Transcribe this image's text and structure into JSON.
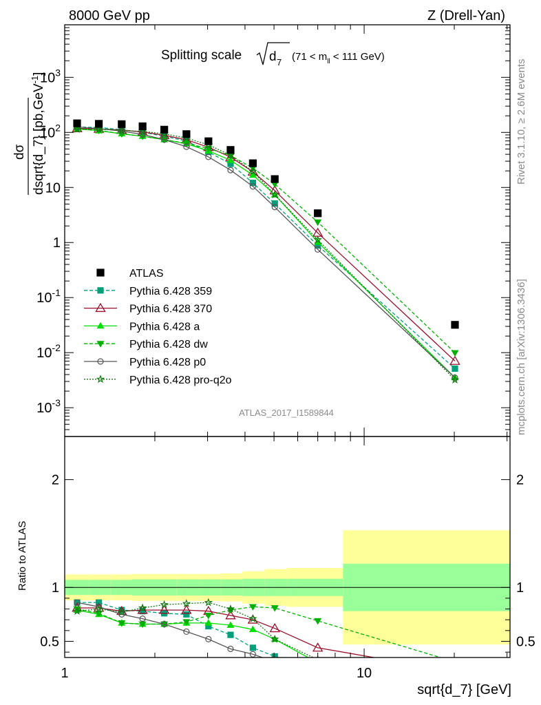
{
  "header": {
    "left": "8000 GeV pp",
    "right": "Z (Drell-Yan)"
  },
  "side_labels": {
    "rivet": "Rivet 3.1.10, ≥ 2.6M events",
    "mcplots": "mcplots.cern.ch [arXiv:1306.3436]"
  },
  "chart_data": {
    "type": "line",
    "title": "Splitting scale",
    "title_symbol": "d",
    "title_subscript": "7",
    "title_condition": "(71 < m",
    "title_condition_sub": "ll",
    "title_condition_end": " < 111 GeV)",
    "analysis_id": "ATLAS_2017_I1589844",
    "xlabel": "sqrt{d_7} [GeV]",
    "ylabel_main": "dσ / dsqrt{d_7} [pb,GeV⁻¹]",
    "ylabel_main_num": "dσ",
    "ylabel_main_den": "dsqrt{d_7} [pb,GeV",
    "ylabel_main_sup": "-1",
    "ylabel_main_end": "]",
    "ylabel_ratio": "Ratio to ATLAS",
    "x_scale": "log",
    "xlim": [
      1,
      30.7
    ],
    "ylim_main": [
      0.0003,
      9000
    ],
    "ylim_ratio": [
      0.35,
      2.4
    ],
    "x_ticks": [
      {
        "v": 1,
        "label": "1"
      },
      {
        "v": 10,
        "label": "10"
      }
    ],
    "y_ticks_main": [
      {
        "v": 0.001,
        "base": "10",
        "exp": "-3"
      },
      {
        "v": 0.01,
        "base": "10",
        "exp": "-2"
      },
      {
        "v": 0.1,
        "base": "10",
        "exp": "-1"
      },
      {
        "v": 1,
        "base": "1",
        "exp": ""
      },
      {
        "v": 10,
        "base": "10",
        "exp": ""
      },
      {
        "v": 100,
        "base": "10",
        "exp": "2"
      },
      {
        "v": 1000,
        "base": "10",
        "exp": "3"
      }
    ],
    "y_ticks_ratio": [
      {
        "v": 0.5,
        "label": "0.5"
      },
      {
        "v": 1,
        "label": "1"
      },
      {
        "v": 2,
        "label": "2"
      }
    ],
    "legend_position": "middle-left",
    "x": [
      1.1,
      1.3,
      1.55,
      1.82,
      2.15,
      2.55,
      3.02,
      3.58,
      4.25,
      5.03,
      7.0,
      20.1
    ],
    "bin_edges": [
      1.0,
      1.2,
      1.42,
      1.68,
      1.99,
      2.36,
      2.8,
      3.31,
      3.92,
      4.65,
      5.51,
      8.5,
      30.7
    ],
    "data": {
      "name": "ATLAS",
      "values": [
        146,
        143,
        141,
        129,
        112,
        93,
        69,
        48,
        27.5,
        14.2,
        3.4,
        0.032
      ]
    },
    "bands": {
      "stat_hw": [
        0.07,
        0.07,
        0.07,
        0.075,
        0.075,
        0.075,
        0.075,
        0.075,
        0.08,
        0.08,
        0.08,
        0.22
      ],
      "total_hw": [
        0.12,
        0.12,
        0.12,
        0.125,
        0.125,
        0.125,
        0.125,
        0.13,
        0.15,
        0.17,
        0.18,
        0.53
      ],
      "stat_color": "#99ff99",
      "total_color": "#ffff99"
    },
    "series": [
      {
        "name": "Pythia 6.428 359",
        "color": "#00a07a",
        "dash": "5,3",
        "marker": "square",
        "fill": true,
        "ratio": [
          0.86,
          0.86,
          0.79,
          0.78,
          0.76,
          0.75,
          0.64,
          0.56,
          0.44,
          0.36,
          0.26,
          0.16
        ]
      },
      {
        "name": "Pythia 6.428 370",
        "color": "#9b0f2b",
        "dash": "",
        "marker": "triangle-up",
        "fill": false,
        "ratio": [
          0.81,
          0.81,
          0.78,
          0.79,
          0.79,
          0.79,
          0.78,
          0.74,
          0.7,
          0.62,
          0.44,
          0.22
        ]
      },
      {
        "name": "Pythia 6.428 a",
        "color": "#00dd00",
        "dash": "",
        "marker": "triangle-up",
        "fill": true,
        "ratio": [
          0.79,
          0.75,
          0.67,
          0.66,
          0.66,
          0.67,
          0.67,
          0.65,
          0.61,
          0.52,
          0.3,
          0.11
        ]
      },
      {
        "name": "Pythia 6.428 dw",
        "color": "#00b000",
        "dash": "5,3",
        "marker": "triangle-down",
        "fill": true,
        "ratio": [
          0.8,
          0.76,
          0.67,
          0.66,
          0.66,
          0.68,
          0.74,
          0.79,
          0.82,
          0.81,
          0.69,
          0.31
        ]
      },
      {
        "name": "Pythia 6.428 p0",
        "color": "#555555",
        "dash": "",
        "marker": "circle",
        "fill": false,
        "ratio": [
          0.86,
          0.82,
          0.75,
          0.71,
          0.66,
          0.59,
          0.52,
          0.43,
          0.38,
          0.31,
          0.22,
          0.11
        ]
      },
      {
        "name": "Pythia 6.428 pro-q2o",
        "color": "#117711",
        "dash": "2,2",
        "marker": "star",
        "fill": false,
        "ratio": [
          0.78,
          0.8,
          0.77,
          0.81,
          0.84,
          0.85,
          0.86,
          0.8,
          0.71,
          0.52,
          0.33,
          0.1
        ]
      }
    ]
  }
}
